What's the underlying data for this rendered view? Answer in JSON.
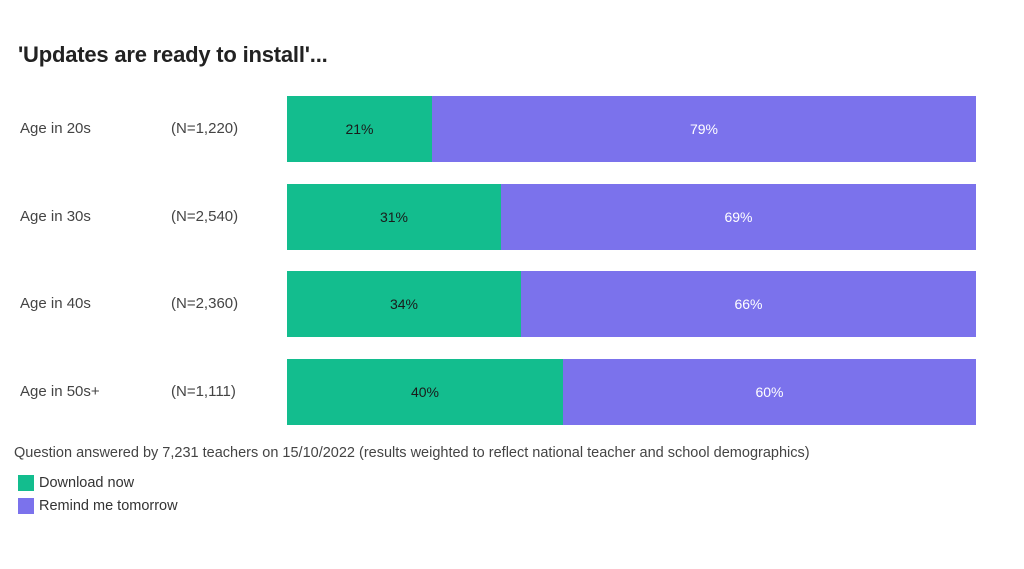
{
  "title": "'Updates are ready to install'...",
  "colors": {
    "download": "#13BD8E",
    "remind": "#7B72EC"
  },
  "legend": [
    {
      "key": "download",
      "label": "Download now"
    },
    {
      "key": "remind",
      "label": "Remind me tomorrow"
    }
  ],
  "note": "Question answered by 7,231 teachers on 15/10/2022 (results weighted to reflect national teacher and school demographics)",
  "chart_data": {
    "type": "bar",
    "orientation": "horizontal",
    "stacked": true,
    "title": "'Updates are ready to install'...",
    "categories": [
      "Age in 20s",
      "Age in 30s",
      "Age in 40s",
      "Age in 50s+"
    ],
    "sample_sizes": [
      "(N=1,220)",
      "(N=2,540)",
      "(N=2,360)",
      "(N=1,111)"
    ],
    "series": [
      {
        "name": "Download now",
        "values": [
          21,
          31,
          34,
          40
        ],
        "labels": [
          "21%",
          "31%",
          "34%",
          "40%"
        ]
      },
      {
        "name": "Remind me tomorrow",
        "values": [
          79,
          69,
          66,
          60
        ],
        "labels": [
          "79%",
          "69%",
          "66%",
          "60%"
        ]
      }
    ],
    "xlim": [
      0,
      100
    ],
    "unit": "%",
    "grid": false,
    "legend_position": "bottom-left"
  }
}
